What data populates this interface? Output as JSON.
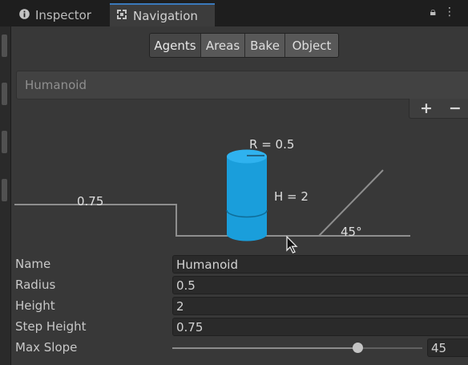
{
  "tabs": {
    "inspector_label": "Inspector",
    "navigation_label": "Navigation",
    "inspector_icon": "info-circle-icon",
    "navigation_icon": "navigation-icon"
  },
  "topbar_icons": [
    "lock-icon",
    "more-icon"
  ],
  "navigation_modes": [
    "Agents",
    "Areas",
    "Bake",
    "Object"
  ],
  "active_mode": "Agents",
  "agent_list": {
    "selected_agent": "Humanoid"
  },
  "list_controls": {
    "add_label": "+",
    "remove_label": "−"
  },
  "diagram": {
    "radius_label": "R = 0.5",
    "height_label": "H = 2",
    "step_label": "0.75",
    "slope_label": "45°"
  },
  "fields": {
    "name_label": "Name",
    "name_value": "Humanoid",
    "radius_label": "Radius",
    "radius_value": "0.5",
    "height_label": "Height",
    "height_value": "2",
    "step_height_label": "Step Height",
    "step_height_value": "0.75",
    "max_slope_label": "Max Slope",
    "max_slope_value": "45",
    "max_slope_fraction": 0.74
  },
  "colors": {
    "accent_tab": "#3a79bb",
    "agent_cylinder": "#1a9edb",
    "background": "#383838"
  }
}
